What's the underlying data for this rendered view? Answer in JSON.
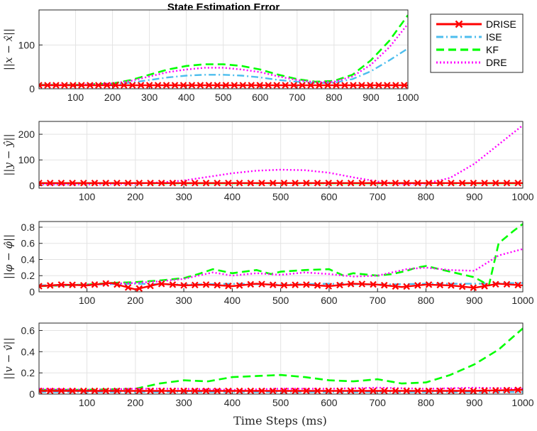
{
  "chart_data": {
    "type": "line",
    "title": "State Estimation Error",
    "xlabel": "Time Steps (ms)",
    "legend_position": "top-right, outside",
    "grid": true,
    "legend": [
      {
        "name": "DRISE",
        "color": "#ff0000",
        "style": "solid-x"
      },
      {
        "name": "ISE",
        "color": "#4dbeee",
        "style": "dashdot"
      },
      {
        "name": "KF",
        "color": "#00ff00",
        "style": "dashed"
      },
      {
        "name": "DRE",
        "color": "#ff00ff",
        "style": "dotted"
      }
    ],
    "subplots": [
      {
        "ylabel": "||x − x̂||",
        "xlim": [
          1,
          1000
        ],
        "ylim": [
          0,
          180
        ],
        "xticks": [
          100,
          200,
          300,
          400,
          500,
          600,
          700,
          800,
          900,
          1000
        ],
        "yticks": [
          0,
          100
        ],
        "series": [
          {
            "name": "DRISE",
            "x": [
              1,
              100,
              200,
              300,
              400,
              500,
              600,
              700,
              800,
              900,
              1000
            ],
            "y": [
              8,
              8,
              8,
              8,
              8,
              8,
              8,
              8,
              8,
              8,
              8
            ]
          },
          {
            "name": "ISE",
            "x": [
              1,
              100,
              200,
              250,
              300,
              350,
              400,
              450,
              500,
              550,
              600,
              650,
              700,
              750,
              800,
              850,
              900,
              950,
              1000
            ],
            "y": [
              8,
              8,
              10,
              14,
              20,
              26,
              30,
              32,
              32,
              30,
              26,
              20,
              16,
              13,
              14,
              22,
              40,
              65,
              92
            ]
          },
          {
            "name": "KF",
            "x": [
              1,
              100,
              200,
              250,
              300,
              350,
              400,
              450,
              500,
              550,
              600,
              650,
              700,
              750,
              800,
              850,
              900,
              950,
              1000
            ],
            "y": [
              9,
              9,
              12,
              20,
              32,
              44,
              52,
              56,
              56,
              52,
              44,
              32,
              22,
              16,
              18,
              32,
              65,
              110,
              168
            ]
          },
          {
            "name": "DRE",
            "x": [
              1,
              100,
              200,
              250,
              300,
              350,
              400,
              450,
              500,
              550,
              600,
              650,
              700,
              750,
              800,
              850,
              900,
              950,
              1000
            ],
            "y": [
              9,
              9,
              12,
              18,
              28,
              38,
              44,
              48,
              48,
              44,
              38,
              28,
              20,
              15,
              16,
              28,
              55,
              95,
              148
            ]
          }
        ]
      },
      {
        "ylabel": "||y − ŷ||",
        "xlim": [
          1,
          1000
        ],
        "ylim": [
          -10,
          250
        ],
        "xticks": [
          100,
          200,
          300,
          400,
          500,
          600,
          700,
          800,
          900,
          1000
        ],
        "yticks": [
          0,
          100,
          200
        ],
        "series": [
          {
            "name": "DRISE",
            "x": [
              1,
              100,
              200,
              300,
              400,
              500,
              600,
              700,
              800,
              900,
              1000
            ],
            "y": [
              10,
              10,
              10,
              10,
              10,
              10,
              10,
              10,
              10,
              10,
              10
            ]
          },
          {
            "name": "ISE",
            "x": [
              1,
              1000
            ],
            "y": [
              9,
              9
            ]
          },
          {
            "name": "KF",
            "x": [
              1,
              1000
            ],
            "y": [
              9,
              9
            ]
          },
          {
            "name": "DRE",
            "x": [
              1,
              100,
              200,
              250,
              300,
              350,
              400,
              450,
              500,
              550,
              600,
              650,
              700,
              750,
              800,
              850,
              900,
              950,
              1000
            ],
            "y": [
              5,
              5,
              8,
              12,
              20,
              34,
              48,
              58,
              62,
              60,
              50,
              32,
              16,
              6,
              8,
              30,
              85,
              160,
              235
            ]
          }
        ]
      },
      {
        "ylabel": "||φ − φ̂||",
        "xlim": [
          1,
          1000
        ],
        "ylim": [
          0,
          0.87
        ],
        "xticks": [
          100,
          200,
          300,
          400,
          500,
          600,
          700,
          800,
          900,
          1000
        ],
        "yticks": [
          0,
          0.2,
          0.4,
          0.6,
          0.8
        ],
        "series": [
          {
            "name": "DRISE",
            "x": [
              1,
              50,
              100,
              150,
              200,
              250,
              300,
              350,
              400,
              450,
              500,
              550,
              600,
              650,
              700,
              750,
              800,
              850,
              900,
              950,
              1000
            ],
            "y": [
              0.07,
              0.09,
              0.08,
              0.11,
              0.03,
              0.1,
              0.08,
              0.09,
              0.07,
              0.1,
              0.08,
              0.09,
              0.07,
              0.1,
              0.09,
              0.06,
              0.09,
              0.08,
              0.05,
              0.1,
              0.08
            ]
          },
          {
            "name": "ISE",
            "x": [
              1,
              100,
              200,
              300,
              400,
              500,
              600,
              700,
              800,
              900,
              1000
            ],
            "y": [
              0.08,
              0.09,
              0.1,
              0.09,
              0.1,
              0.09,
              0.1,
              0.09,
              0.1,
              0.1,
              0.11
            ]
          },
          {
            "name": "KF",
            "x": [
              1,
              50,
              100,
              150,
              200,
              250,
              300,
              330,
              360,
              400,
              450,
              480,
              500,
              550,
              600,
              630,
              650,
              700,
              730,
              760,
              780,
              800,
              850,
              900,
              930,
              950,
              980,
              1000
            ],
            "y": [
              0.07,
              0.08,
              0.09,
              0.11,
              0.12,
              0.14,
              0.17,
              0.22,
              0.28,
              0.23,
              0.27,
              0.22,
              0.25,
              0.27,
              0.28,
              0.2,
              0.23,
              0.2,
              0.22,
              0.26,
              0.3,
              0.32,
              0.25,
              0.18,
              0.08,
              0.6,
              0.75,
              0.84
            ]
          },
          {
            "name": "DRE",
            "x": [
              1,
              50,
              100,
              150,
              200,
              250,
              300,
              330,
              360,
              400,
              450,
              500,
              550,
              600,
              650,
              700,
              730,
              760,
              800,
              850,
              900,
              950,
              1000
            ],
            "y": [
              0.07,
              0.08,
              0.09,
              0.1,
              0.11,
              0.13,
              0.16,
              0.2,
              0.24,
              0.2,
              0.23,
              0.21,
              0.24,
              0.22,
              0.19,
              0.2,
              0.24,
              0.28,
              0.3,
              0.27,
              0.26,
              0.45,
              0.53
            ]
          }
        ]
      },
      {
        "ylabel": "||v − v̂||",
        "xlim": [
          1,
          1000
        ],
        "ylim": [
          0,
          0.67
        ],
        "xticks": [
          100,
          200,
          300,
          400,
          500,
          600,
          700,
          800,
          900,
          1000
        ],
        "yticks": [
          0,
          0.2,
          0.4,
          0.6
        ],
        "series": [
          {
            "name": "DRISE",
            "x": [
              1,
              100,
              200,
              300,
              400,
              500,
              600,
              700,
              800,
              900,
              1000
            ],
            "y": [
              0.03,
              0.03,
              0.03,
              0.03,
              0.03,
              0.03,
              0.03,
              0.03,
              0.03,
              0.03,
              0.04
            ]
          },
          {
            "name": "ISE",
            "x": [
              1,
              100,
              200,
              300,
              400,
              500,
              600,
              700,
              800,
              900,
              1000
            ],
            "y": [
              0.02,
              0.02,
              0.02,
              0.02,
              0.02,
              0.02,
              0.02,
              0.02,
              0.02,
              0.02,
              0.02
            ]
          },
          {
            "name": "KF",
            "x": [
              1,
              100,
              200,
              250,
              300,
              350,
              400,
              450,
              500,
              550,
              600,
              650,
              700,
              750,
              800,
              850,
              900,
              950,
              1000
            ],
            "y": [
              0.04,
              0.04,
              0.05,
              0.1,
              0.13,
              0.12,
              0.16,
              0.17,
              0.18,
              0.16,
              0.13,
              0.12,
              0.14,
              0.1,
              0.11,
              0.18,
              0.28,
              0.42,
              0.62
            ]
          },
          {
            "name": "DRE",
            "x": [
              1,
              100,
              200,
              300,
              400,
              500,
              600,
              700,
              800,
              900,
              1000
            ],
            "y": [
              0.05,
              0.04,
              0.05,
              0.05,
              0.04,
              0.05,
              0.05,
              0.06,
              0.05,
              0.06,
              0.05
            ]
          }
        ]
      }
    ]
  }
}
